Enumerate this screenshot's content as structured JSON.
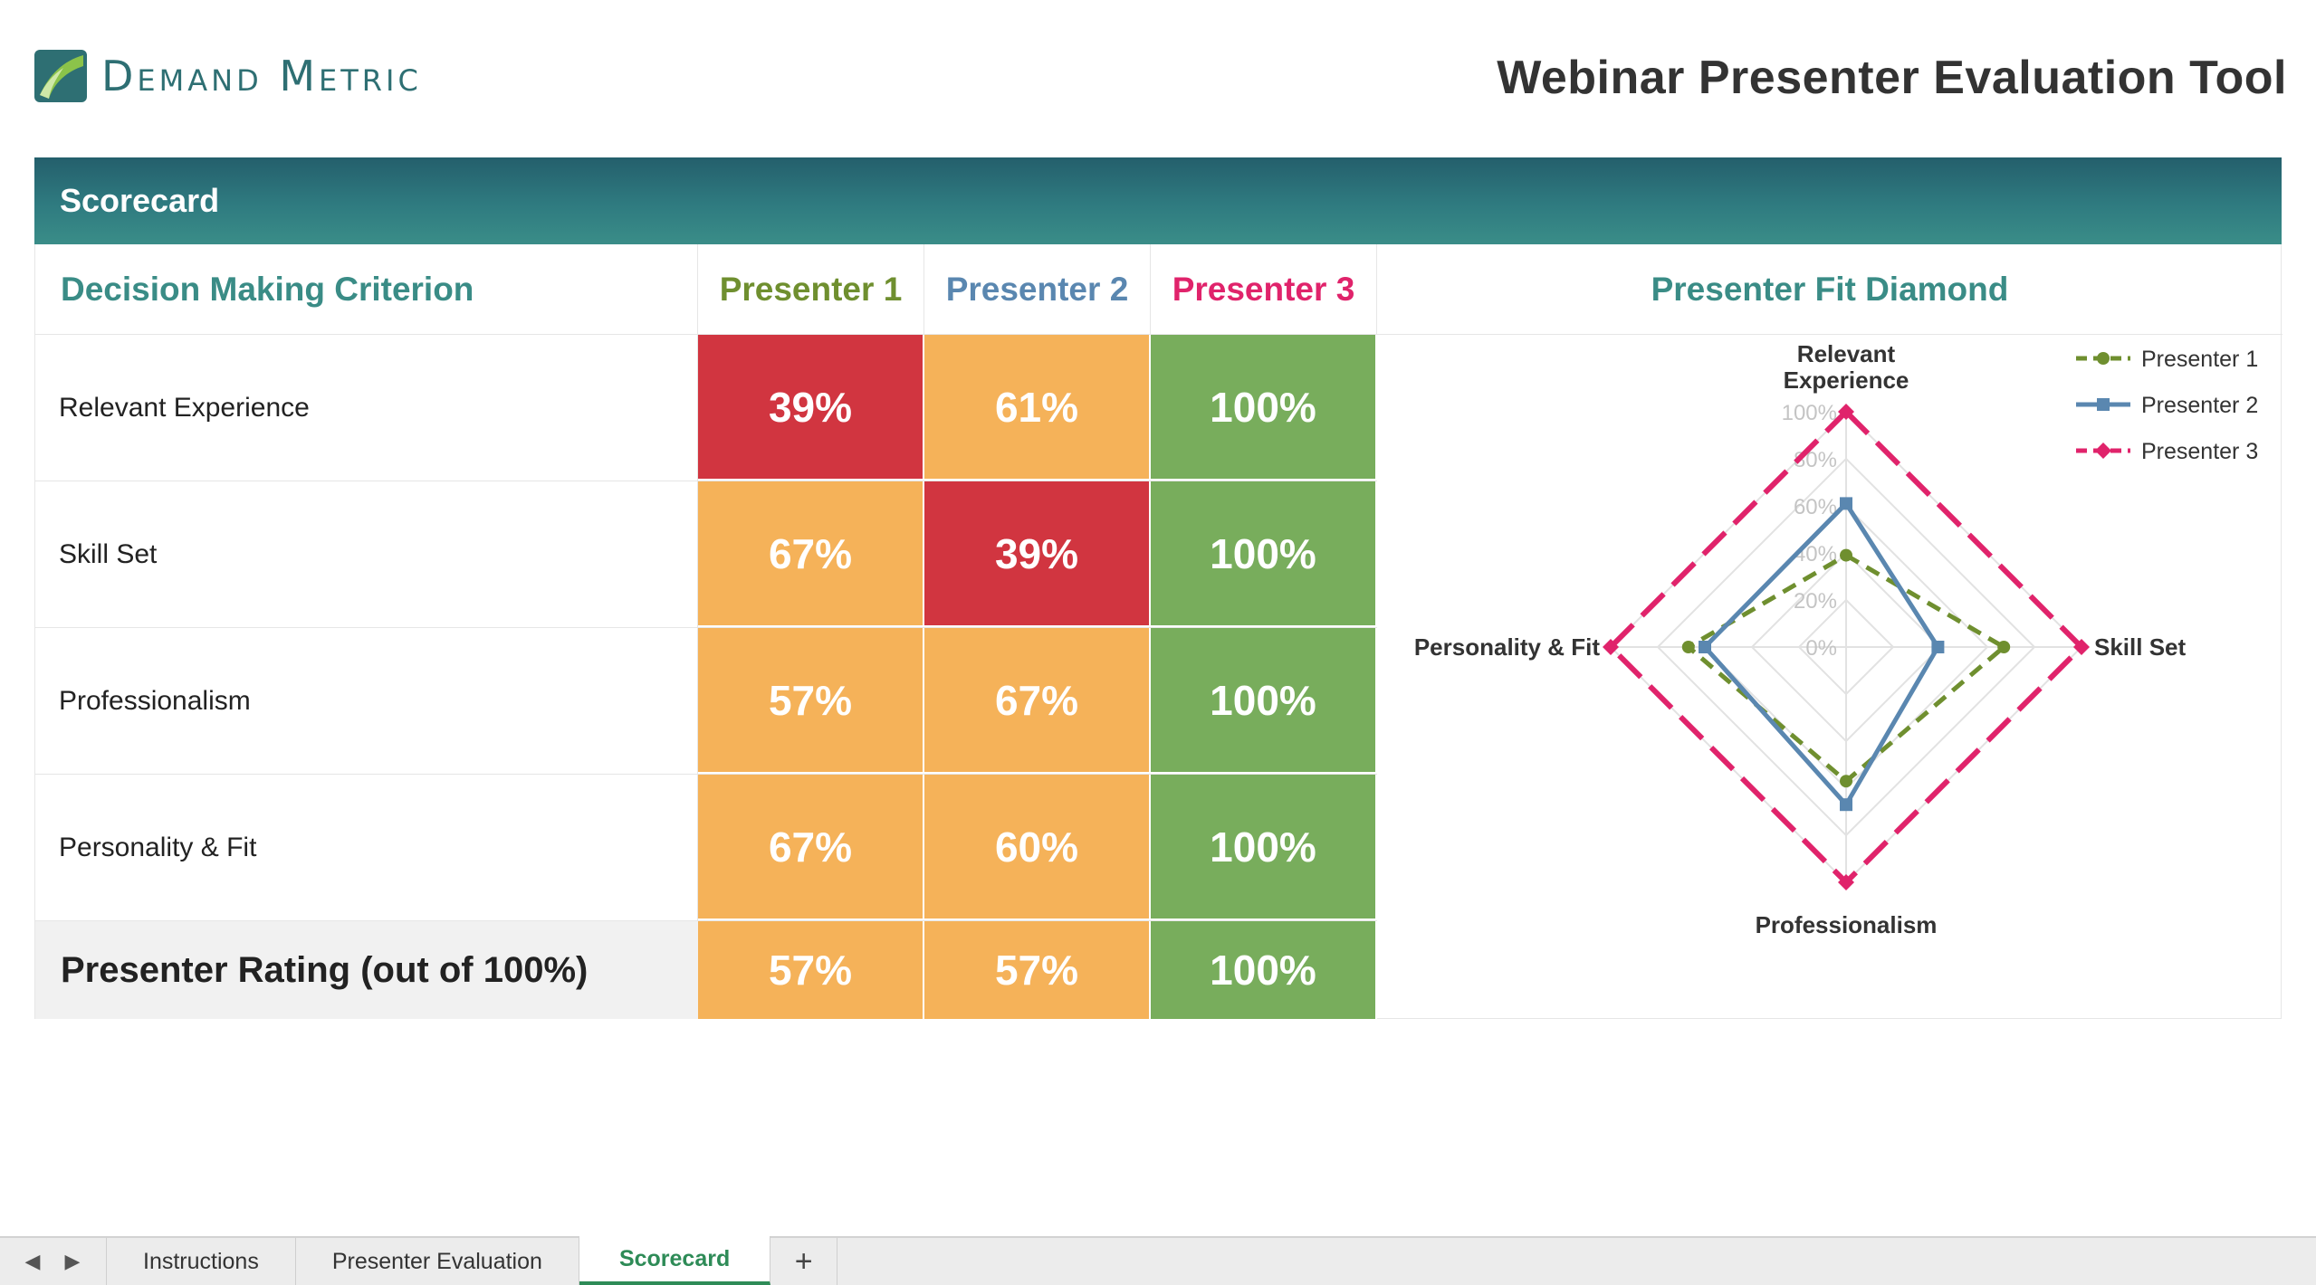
{
  "header": {
    "logo_text": "Demand Metric",
    "app_title": "Webinar Presenter Evaluation Tool"
  },
  "banner": {
    "title": "Scorecard"
  },
  "table": {
    "criterion_header": "Decision Making Criterion",
    "presenters": [
      {
        "label": "Presenter 1",
        "color": "#6f8f2f"
      },
      {
        "label": "Presenter 2",
        "color": "#5a87b0"
      },
      {
        "label": "Presenter 3",
        "color": "#e0236b"
      }
    ],
    "rows": [
      {
        "criterion": "Relevant Experience",
        "scores": [
          "39%",
          "61%",
          "100%"
        ],
        "levels": [
          "low",
          "mid",
          "high"
        ]
      },
      {
        "criterion": "Skill Set",
        "scores": [
          "67%",
          "39%",
          "100%"
        ],
        "levels": [
          "mid",
          "low",
          "high"
        ]
      },
      {
        "criterion": "Professionalism",
        "scores": [
          "57%",
          "67%",
          "100%"
        ],
        "levels": [
          "mid",
          "mid",
          "high"
        ]
      },
      {
        "criterion": "Personality & Fit",
        "scores": [
          "67%",
          "60%",
          "100%"
        ],
        "levels": [
          "mid",
          "mid",
          "high"
        ]
      }
    ],
    "rating": {
      "label": "Presenter Rating (out of 100%)",
      "scores": [
        "57%",
        "57%",
        "100%"
      ],
      "levels": [
        "mid",
        "mid",
        "high"
      ]
    },
    "level_colors": {
      "low": "#d13540",
      "mid": "#f5b259",
      "high": "#78ad5c"
    }
  },
  "chart_title": "Presenter Fit Diamond",
  "chart_data": {
    "type": "radar",
    "axes": [
      "Relevant Experience",
      "Skill Set",
      "Professionalism",
      "Personality & Fit"
    ],
    "axis_labels": [
      "Relevant",
      "Experience",
      "Skill Set",
      "Professionalism",
      "Personality & Fit"
    ],
    "ticks": [
      "0%",
      "20%",
      "40%",
      "60%",
      "80%",
      "100%"
    ],
    "range": [
      0,
      100
    ],
    "legend_position": "top-right",
    "series": [
      {
        "name": "Presenter 1",
        "values": [
          39,
          67,
          57,
          67
        ],
        "color": "#6f8f2f",
        "style": "dashed"
      },
      {
        "name": "Presenter 2",
        "values": [
          61,
          39,
          67,
          60
        ],
        "color": "#5a87b0",
        "style": "solid"
      },
      {
        "name": "Presenter 3",
        "values": [
          100,
          100,
          100,
          100
        ],
        "color": "#e0236b",
        "style": "dashed"
      }
    ]
  },
  "sheet_tabs": {
    "tabs": [
      "Instructions",
      "Presenter Evaluation",
      "Scorecard"
    ],
    "active": "Scorecard",
    "add_label": "+"
  }
}
